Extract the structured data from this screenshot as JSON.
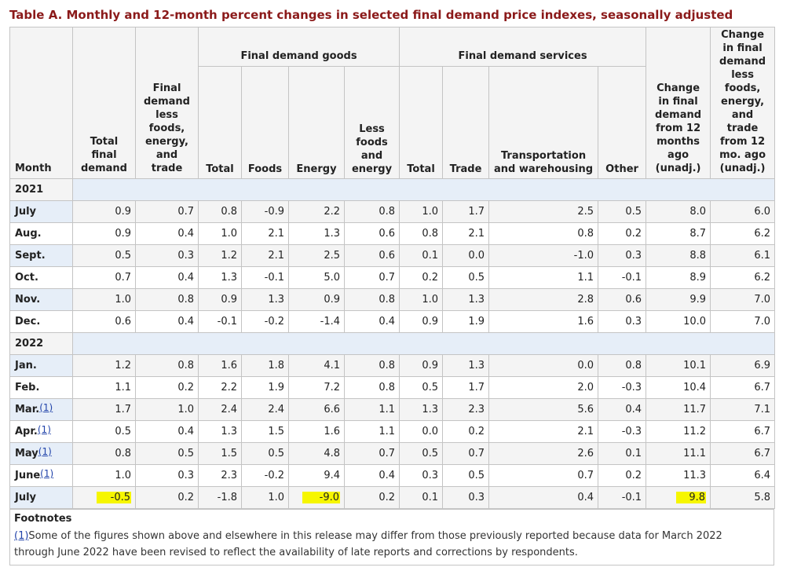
{
  "title": "Table A. Monthly and 12-month percent changes in selected final demand price indexes, seasonally adjusted",
  "headers": {
    "month": "Month",
    "total_final_demand": "Total final demand",
    "fd_less": "Final demand less foods, energy, and trade",
    "goods_group": "Final demand goods",
    "services_group": "Final demand services",
    "goods_total": "Total",
    "goods_foods": "Foods",
    "goods_energy": "Energy",
    "goods_less": "Less foods and energy",
    "serv_total": "Total",
    "serv_trade": "Trade",
    "serv_transport": "Transportation and warehousing",
    "serv_other": "Other",
    "change12": "Change in final demand from 12 months ago (unadj.)",
    "change12_less": "Change in final demand less foods, energy, and trade from 12 mo. ago (unadj.)"
  },
  "years": [
    "2021",
    "2022"
  ],
  "rows_2021": [
    {
      "month": "July",
      "vals": [
        "0.9",
        "0.7",
        "0.8",
        "-0.9",
        "2.2",
        "0.8",
        "1.0",
        "1.7",
        "2.5",
        "0.5",
        "8.0",
        "6.0"
      ]
    },
    {
      "month": "Aug.",
      "vals": [
        "0.9",
        "0.4",
        "1.0",
        "2.1",
        "1.3",
        "0.6",
        "0.8",
        "2.1",
        "0.8",
        "0.2",
        "8.7",
        "6.2"
      ]
    },
    {
      "month": "Sept.",
      "vals": [
        "0.5",
        "0.3",
        "1.2",
        "2.1",
        "2.5",
        "0.6",
        "0.1",
        "0.0",
        "-1.0",
        "0.3",
        "8.8",
        "6.1"
      ]
    },
    {
      "month": "Oct.",
      "vals": [
        "0.7",
        "0.4",
        "1.3",
        "-0.1",
        "5.0",
        "0.7",
        "0.2",
        "0.5",
        "1.1",
        "-0.1",
        "8.9",
        "6.2"
      ]
    },
    {
      "month": "Nov.",
      "vals": [
        "1.0",
        "0.8",
        "0.9",
        "1.3",
        "0.9",
        "0.8",
        "1.0",
        "1.3",
        "2.8",
        "0.6",
        "9.9",
        "7.0"
      ]
    },
    {
      "month": "Dec.",
      "vals": [
        "0.6",
        "0.4",
        "-0.1",
        "-0.2",
        "-1.4",
        "0.4",
        "0.9",
        "1.9",
        "1.6",
        "0.3",
        "10.0",
        "7.0"
      ]
    }
  ],
  "rows_2022": [
    {
      "month": "Jan.",
      "fn": "",
      "vals": [
        "1.2",
        "0.8",
        "1.6",
        "1.8",
        "4.1",
        "0.8",
        "0.9",
        "1.3",
        "0.0",
        "0.8",
        "10.1",
        "6.9"
      ]
    },
    {
      "month": "Feb.",
      "fn": "",
      "vals": [
        "1.1",
        "0.2",
        "2.2",
        "1.9",
        "7.2",
        "0.8",
        "0.5",
        "1.7",
        "2.0",
        "-0.3",
        "10.4",
        "6.7"
      ]
    },
    {
      "month": "Mar.",
      "fn": "(1)",
      "vals": [
        "1.7",
        "1.0",
        "2.4",
        "2.4",
        "6.6",
        "1.1",
        "1.3",
        "2.3",
        "5.6",
        "0.4",
        "11.7",
        "7.1"
      ]
    },
    {
      "month": "Apr.",
      "fn": "(1)",
      "vals": [
        "0.5",
        "0.4",
        "1.3",
        "1.5",
        "1.6",
        "1.1",
        "0.0",
        "0.2",
        "2.1",
        "-0.3",
        "11.2",
        "6.7"
      ]
    },
    {
      "month": "May",
      "fn": "(1)",
      "vals": [
        "0.8",
        "0.5",
        "1.5",
        "0.5",
        "4.8",
        "0.7",
        "0.5",
        "0.7",
        "2.6",
        "0.1",
        "11.1",
        "6.7"
      ]
    },
    {
      "month": "June",
      "fn": "(1)",
      "vals": [
        "1.0",
        "0.3",
        "2.3",
        "-0.2",
        "9.4",
        "0.4",
        "0.3",
        "0.5",
        "0.7",
        "0.2",
        "11.3",
        "6.4"
      ]
    },
    {
      "month": "July",
      "fn": "",
      "vals": [
        "-0.5",
        "0.2",
        "-1.8",
        "1.0",
        "-9.0",
        "0.2",
        "0.1",
        "0.3",
        "0.4",
        "-0.1",
        "9.8",
        "5.8"
      ]
    }
  ],
  "highlighted_cells": [
    "July 2022 Total final demand",
    "July 2022 Energy",
    "July 2022 Change in final demand from 12 months ago"
  ],
  "highlight_color": "#f6f600",
  "footnotes": {
    "title": "Footnotes",
    "marker": "(1)",
    "text": "Some of the figures shown above and elsewhere in this release may differ from those previously reported because data for March 2022 through June 2022 have been revised to reflect the availability of late reports and corrections by respondents."
  }
}
